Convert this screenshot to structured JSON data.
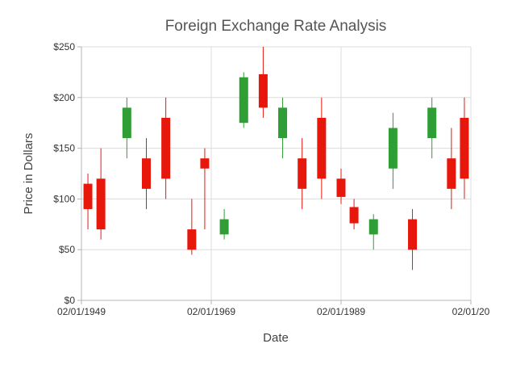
{
  "chart_data": {
    "type": "candlestick",
    "title": "Foreign Exchange Rate Analysis",
    "xlabel": "Date",
    "ylabel": "Price in Dollars",
    "x_tick_labels": [
      "02/01/1949",
      "02/01/1969",
      "02/01/1989",
      "02/01/20"
    ],
    "y_tick_labels": [
      "$0",
      "$50",
      "$100",
      "$150",
      "$200",
      "$250"
    ],
    "y_ticks": [
      0,
      50,
      100,
      150,
      200,
      250
    ],
    "ylim": [
      0,
      250
    ],
    "xlim": [
      "1949-02-01",
      "2009-02-01"
    ],
    "grid": true,
    "colors": {
      "bullish": "#2e9e35",
      "bearish": "#e8170b"
    },
    "series": [
      {
        "date": "1950-02-01",
        "open": 115,
        "high": 125,
        "low": 70,
        "close": 90
      },
      {
        "date": "1952-02-01",
        "open": 120,
        "high": 150,
        "low": 60,
        "close": 70
      },
      {
        "date": "1956-02-01",
        "open": 160,
        "high": 200,
        "low": 140,
        "close": 190
      },
      {
        "date": "1959-02-01",
        "open": 140,
        "high": 160,
        "low": 90,
        "close": 110
      },
      {
        "date": "1962-02-01",
        "open": 180,
        "high": 200,
        "low": 100,
        "close": 120
      },
      {
        "date": "1966-02-01",
        "open": 70,
        "high": 100,
        "low": 45,
        "close": 50
      },
      {
        "date": "1968-02-01",
        "open": 140,
        "high": 150,
        "low": 70,
        "close": 130
      },
      {
        "date": "1971-02-01",
        "open": 65,
        "high": 90,
        "low": 60,
        "close": 80
      },
      {
        "date": "1974-02-01",
        "open": 175,
        "high": 225,
        "low": 170,
        "close": 220
      },
      {
        "date": "1977-02-01",
        "open": 223,
        "high": 250,
        "low": 180,
        "close": 190
      },
      {
        "date": "1980-02-01",
        "open": 160,
        "high": 200,
        "low": 140,
        "close": 190
      },
      {
        "date": "1983-02-01",
        "open": 140,
        "high": 160,
        "low": 90,
        "close": 110
      },
      {
        "date": "1986-02-01",
        "open": 180,
        "high": 200,
        "low": 100,
        "close": 120
      },
      {
        "date": "1989-02-01",
        "open": 120,
        "high": 130,
        "low": 95,
        "close": 102
      },
      {
        "date": "1991-02-01",
        "open": 92,
        "high": 100,
        "low": 70,
        "close": 76
      },
      {
        "date": "1994-02-01",
        "open": 65,
        "high": 85,
        "low": 50,
        "close": 80
      },
      {
        "date": "1997-02-01",
        "open": 130,
        "high": 185,
        "low": 110,
        "close": 170
      },
      {
        "date": "2000-02-01",
        "open": 80,
        "high": 90,
        "low": 30,
        "close": 50
      },
      {
        "date": "2003-02-01",
        "open": 160,
        "high": 200,
        "low": 140,
        "close": 190
      },
      {
        "date": "2006-02-01",
        "open": 140,
        "high": 170,
        "low": 90,
        "close": 110
      },
      {
        "date": "2008-02-01",
        "open": 180,
        "high": 200,
        "low": 100,
        "close": 120
      }
    ]
  }
}
